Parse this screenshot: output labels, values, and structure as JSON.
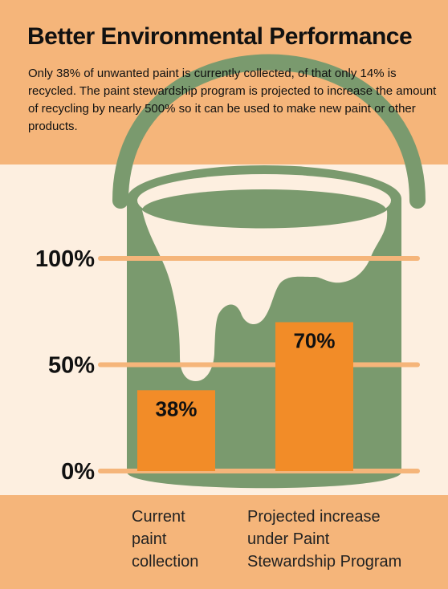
{
  "title": "Better Environmental Performance",
  "subtitle": "Only 38% of unwanted paint is currently collected, of that only 14% is recycled. The paint stewardship program is projected to increase the amount of recycling by nearly 500% so it can be used to make new paint or other products.",
  "colors": {
    "band": "#f5b57a",
    "background": "#fdefe0",
    "can": "#7a9a6e",
    "can_rim": "#6b8a5f",
    "drip": "#fdefe0",
    "bar": "#f28c28",
    "gridline": "#f5b57a",
    "text": "#111111"
  },
  "chart_data": {
    "type": "bar",
    "title": "Better Environmental Performance",
    "categories": [
      "Current\npaint\ncollection",
      "Projected increase\nunder Paint\nStewardship Program"
    ],
    "values": [
      38,
      70
    ],
    "value_labels": [
      "38%",
      "70%"
    ],
    "ylim": [
      0,
      100
    ],
    "yticks": [
      0,
      50,
      100
    ],
    "ytick_labels": [
      "0%",
      "50%",
      "100%"
    ],
    "grid": true,
    "legend": "none"
  }
}
